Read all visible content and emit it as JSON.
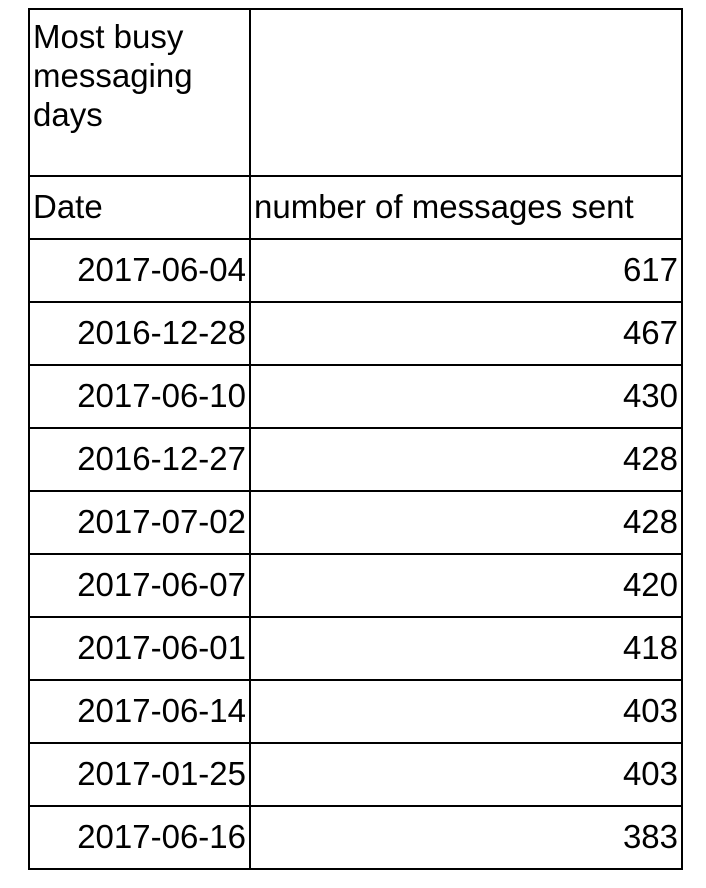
{
  "table": {
    "title": "Most busy messaging days",
    "title_right": "",
    "columns": [
      "Date",
      "number of messages sent"
    ],
    "rows": [
      {
        "date": "2017-06-04",
        "count": "617"
      },
      {
        "date": "2016-12-28",
        "count": "467"
      },
      {
        "date": "2017-06-10",
        "count": "430"
      },
      {
        "date": "2016-12-27",
        "count": "428"
      },
      {
        "date": "2017-07-02",
        "count": "428"
      },
      {
        "date": "2017-06-07",
        "count": "420"
      },
      {
        "date": "2017-06-01",
        "count": "418"
      },
      {
        "date": "2017-06-14",
        "count": "403"
      },
      {
        "date": "2017-01-25",
        "count": "403"
      },
      {
        "date": "2017-06-16",
        "count": "383"
      }
    ]
  }
}
